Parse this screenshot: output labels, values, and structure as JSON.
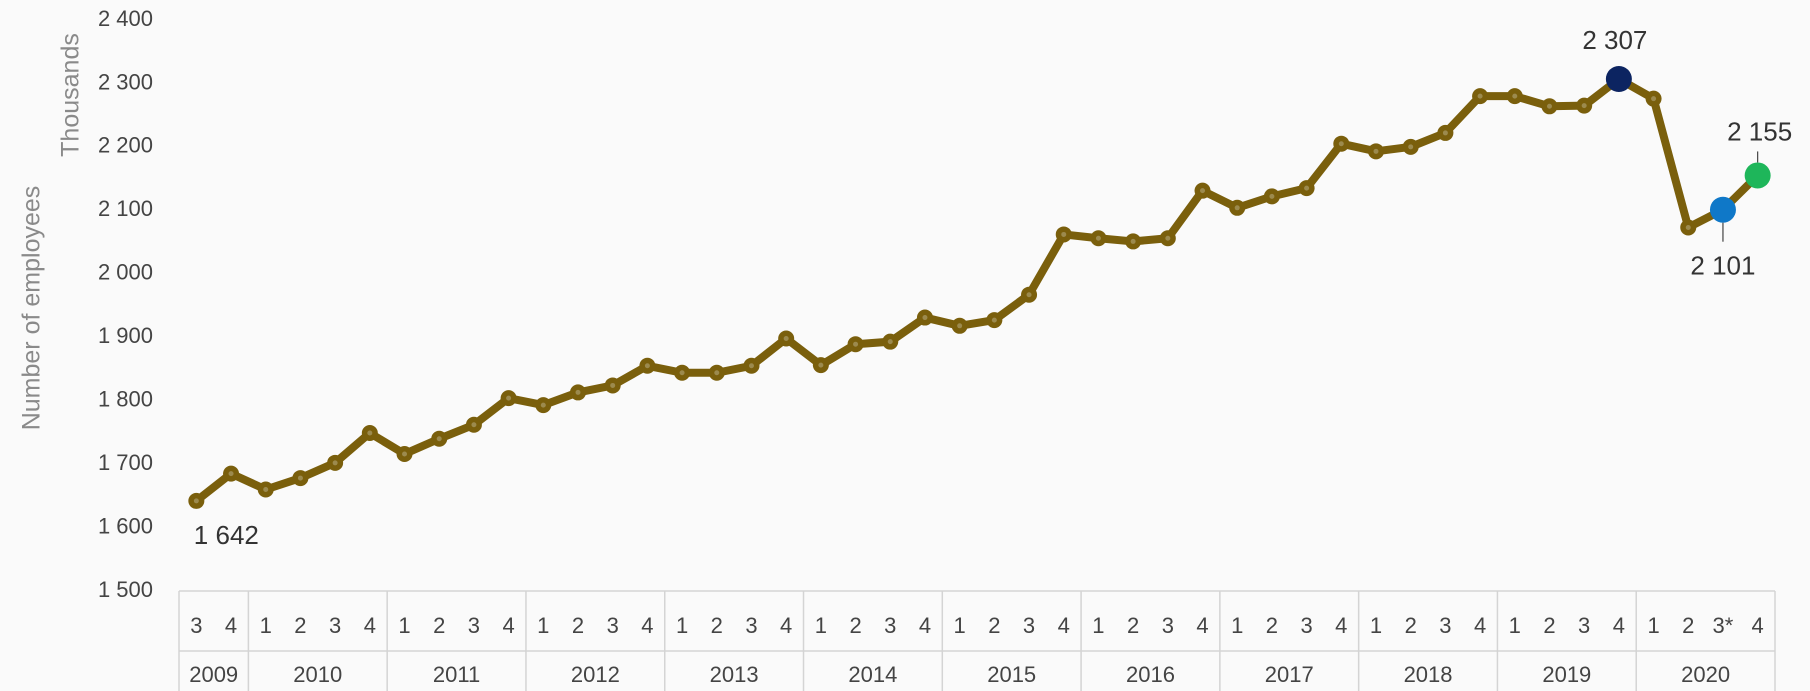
{
  "chart_data": {
    "type": "line",
    "y_axis_label": "Number of employees",
    "y_unit_label": "Thousands",
    "color": "#7a5f0c",
    "categories": [
      {
        "quarter": "3",
        "year": "2009"
      },
      {
        "quarter": "4",
        "year": "2009"
      },
      {
        "quarter": "1",
        "year": "2010"
      },
      {
        "quarter": "2",
        "year": "2010"
      },
      {
        "quarter": "3",
        "year": "2010"
      },
      {
        "quarter": "4",
        "year": "2010"
      },
      {
        "quarter": "1",
        "year": "2011"
      },
      {
        "quarter": "2",
        "year": "2011"
      },
      {
        "quarter": "3",
        "year": "2011"
      },
      {
        "quarter": "4",
        "year": "2011"
      },
      {
        "quarter": "1",
        "year": "2012"
      },
      {
        "quarter": "2",
        "year": "2012"
      },
      {
        "quarter": "3",
        "year": "2012"
      },
      {
        "quarter": "4",
        "year": "2012"
      },
      {
        "quarter": "1",
        "year": "2013"
      },
      {
        "quarter": "2",
        "year": "2013"
      },
      {
        "quarter": "3",
        "year": "2013"
      },
      {
        "quarter": "4",
        "year": "2013"
      },
      {
        "quarter": "1",
        "year": "2014"
      },
      {
        "quarter": "2",
        "year": "2014"
      },
      {
        "quarter": "3",
        "year": "2014"
      },
      {
        "quarter": "4",
        "year": "2014"
      },
      {
        "quarter": "1",
        "year": "2015"
      },
      {
        "quarter": "2",
        "year": "2015"
      },
      {
        "quarter": "3",
        "year": "2015"
      },
      {
        "quarter": "4",
        "year": "2015"
      },
      {
        "quarter": "1",
        "year": "2016"
      },
      {
        "quarter": "2",
        "year": "2016"
      },
      {
        "quarter": "3",
        "year": "2016"
      },
      {
        "quarter": "4",
        "year": "2016"
      },
      {
        "quarter": "1",
        "year": "2017"
      },
      {
        "quarter": "2",
        "year": "2017"
      },
      {
        "quarter": "3",
        "year": "2017"
      },
      {
        "quarter": "4",
        "year": "2017"
      },
      {
        "quarter": "1",
        "year": "2018"
      },
      {
        "quarter": "2",
        "year": "2018"
      },
      {
        "quarter": "3",
        "year": "2018"
      },
      {
        "quarter": "4",
        "year": "2018"
      },
      {
        "quarter": "1",
        "year": "2019"
      },
      {
        "quarter": "2",
        "year": "2019"
      },
      {
        "quarter": "3",
        "year": "2019"
      },
      {
        "quarter": "4",
        "year": "2019"
      },
      {
        "quarter": "1",
        "year": "2020"
      },
      {
        "quarter": "2",
        "year": "2020"
      },
      {
        "quarter": "3*",
        "year": "2020"
      },
      {
        "quarter": "4",
        "year": "2020"
      }
    ],
    "values": [
      1642,
      1685,
      1660,
      1678,
      1702,
      1749,
      1716,
      1740,
      1762,
      1804,
      1793,
      1813,
      1824,
      1855,
      1844,
      1844,
      1855,
      1898,
      1856,
      1889,
      1893,
      1931,
      1918,
      1927,
      1967,
      2062,
      2056,
      2051,
      2056,
      2131,
      2104,
      2122,
      2135,
      2205,
      2193,
      2200,
      2222,
      2280,
      2280,
      2264,
      2265,
      2307,
      2276,
      2073,
      2101,
      2155
    ],
    "value_labels": [
      "1 642",
      null,
      null,
      null,
      null,
      null,
      null,
      null,
      null,
      null,
      null,
      null,
      null,
      null,
      null,
      null,
      null,
      null,
      null,
      null,
      null,
      null,
      null,
      null,
      null,
      null,
      null,
      null,
      null,
      null,
      null,
      null,
      null,
      null,
      null,
      null,
      null,
      null,
      null,
      null,
      null,
      "2 307",
      null,
      null,
      "2 101",
      "2 155"
    ],
    "point_colors": [
      null,
      null,
      null,
      null,
      null,
      null,
      null,
      null,
      null,
      null,
      null,
      null,
      null,
      null,
      null,
      null,
      null,
      null,
      null,
      null,
      null,
      null,
      null,
      null,
      null,
      null,
      null,
      null,
      null,
      null,
      null,
      null,
      null,
      null,
      null,
      null,
      null,
      null,
      null,
      null,
      null,
      "#0c2461",
      null,
      null,
      "#0f78c8",
      "#1eb65a"
    ],
    "ylim": [
      1500,
      2400
    ],
    "yticks": [
      {
        "value": 1500,
        "label": "1 500"
      },
      {
        "value": 1600,
        "label": "1 600"
      },
      {
        "value": 1700,
        "label": "1 700"
      },
      {
        "value": 1800,
        "label": "1 800"
      },
      {
        "value": 1900,
        "label": "1 900"
      },
      {
        "value": 2000,
        "label": "2 000"
      },
      {
        "value": 2100,
        "label": "2 100"
      },
      {
        "value": 2200,
        "label": "2 200"
      },
      {
        "value": 2300,
        "label": "2 300"
      },
      {
        "value": 2400,
        "label": "2 400"
      }
    ]
  }
}
